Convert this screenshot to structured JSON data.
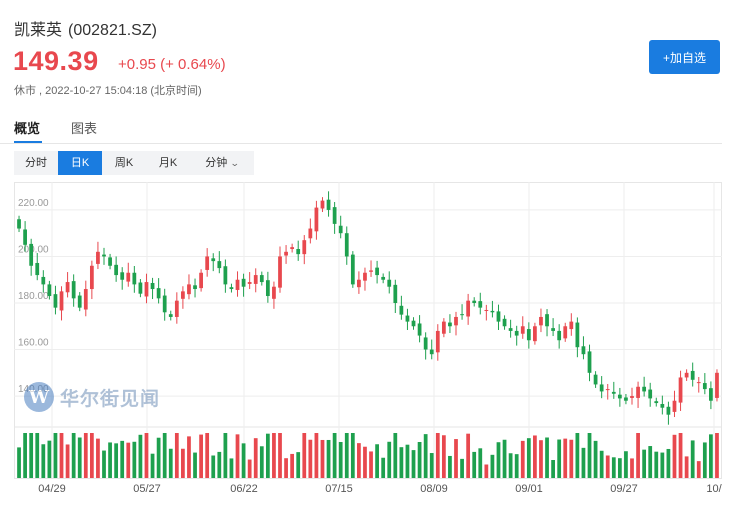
{
  "stock": {
    "name": "凯莱英",
    "code": "(002821.SZ)",
    "price": "149.39",
    "change": "+0.95 (+ 0.64%)",
    "status": "休市 , 2022-10-27 15:04:18 (北京时间)"
  },
  "actions": {
    "add_watchlist": "+加自选"
  },
  "tabs": [
    {
      "label": "概览",
      "active": true
    },
    {
      "label": "图表",
      "active": false
    }
  ],
  "periods": [
    {
      "label": "分时",
      "active": false
    },
    {
      "label": "日K",
      "active": true
    },
    {
      "label": "周K",
      "active": false
    },
    {
      "label": "月K",
      "active": false
    },
    {
      "label": "分钟",
      "active": false
    }
  ],
  "watermark": {
    "text": "华尔街见闻"
  },
  "colors": {
    "up": "#e8484e",
    "down": "#1ea04e",
    "accent": "#1a7ce0"
  },
  "chart_data": {
    "type": "candlestick",
    "title": "",
    "y_ticks": [
      "220.00",
      "200.00",
      "180.00",
      "160.00",
      "140.00"
    ],
    "ylim": [
      128,
      232
    ],
    "x_ticks": [
      "04/29",
      "05/27",
      "06/22",
      "07/15",
      "08/09",
      "09/01",
      "09/27",
      "10/"
    ],
    "grid": true,
    "closes": [
      212,
      205,
      196,
      192,
      188,
      183,
      178,
      185,
      189,
      182,
      178,
      186,
      196,
      202,
      200,
      196,
      192,
      190,
      193,
      188,
      184,
      189,
      186,
      182,
      176,
      174,
      181,
      185,
      188,
      186,
      193,
      200,
      198,
      195,
      188,
      186,
      190,
      187,
      189,
      192,
      189,
      183,
      187,
      200,
      202,
      204,
      201,
      207,
      212,
      221,
      224,
      220,
      214,
      210,
      200,
      188,
      190,
      193,
      194,
      192,
      190,
      187,
      180,
      175,
      172,
      170,
      166,
      160,
      158,
      168,
      172,
      170,
      174,
      175,
      181,
      180,
      178,
      177,
      176,
      172,
      170,
      168,
      166,
      170,
      164,
      170,
      174,
      170,
      168,
      164,
      170,
      172,
      161,
      158,
      150,
      145,
      142,
      143,
      141,
      139,
      138,
      140,
      144,
      142,
      139,
      137,
      135,
      132,
      138,
      148,
      150,
      147,
      146,
      143,
      138,
      150
    ],
    "volume_scale": "relative"
  }
}
